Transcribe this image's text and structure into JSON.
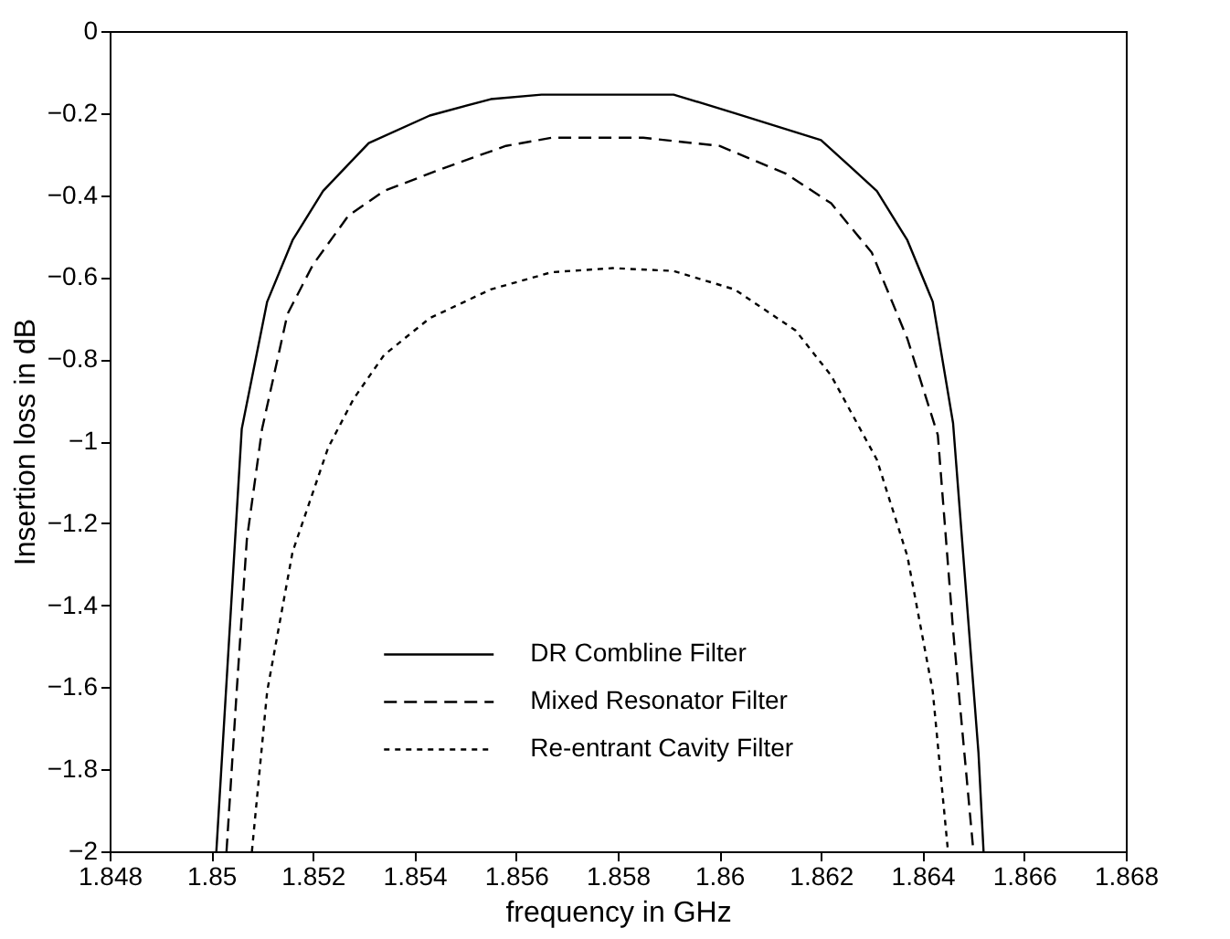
{
  "chart_data": {
    "type": "line",
    "xlabel": "frequency in GHz",
    "ylabel": "Insertion loss in dB",
    "xlim": [
      1.848,
      1.868
    ],
    "xticks": [
      1.848,
      1.85,
      1.852,
      1.854,
      1.856,
      1.858,
      1.86,
      1.862,
      1.864,
      1.866,
      1.868
    ],
    "ylim": [
      -2,
      0
    ],
    "yticks": [
      -2,
      -1.8,
      -1.6,
      -1.4,
      -1.2,
      -1,
      -0.8,
      -0.6,
      -0.4,
      -0.2,
      0
    ],
    "grid": false,
    "legend": "bottom",
    "marker": "none",
    "series": [
      {
        "name": "DR Combline Filter",
        "color": "#000000",
        "line_style": "solid",
        "x": [
          1.8501,
          1.8506,
          1.8511,
          1.8516,
          1.8522,
          1.8527,
          1.8531,
          1.8543,
          1.8555,
          1.8565,
          1.8591,
          1.8603,
          1.862,
          1.8626,
          1.8631,
          1.8637,
          1.8642,
          1.8646,
          1.8651,
          1.8652
        ],
        "values": [
          -2,
          -0.97,
          -0.66,
          -0.51,
          -0.39,
          -0.325,
          -0.273,
          -0.206,
          -0.166,
          -0.155,
          -0.155,
          -0.2,
          -0.266,
          -0.333,
          -0.39,
          -0.51,
          -0.66,
          -0.956,
          -1.76,
          -2
        ]
      },
      {
        "name": "Mixed Resonator Filter",
        "color": "#000000",
        "line_style": "dashed",
        "x": [
          1.8503,
          1.8505,
          1.8507,
          1.851,
          1.8515,
          1.852,
          1.8527,
          1.8534,
          1.8546,
          1.8558,
          1.8567,
          1.8585,
          1.86,
          1.8613,
          1.8622,
          1.863,
          1.8637,
          1.8643,
          1.8646,
          1.865
        ],
        "values": [
          -2,
          -1.61,
          -1.24,
          -0.97,
          -0.69,
          -0.57,
          -0.45,
          -0.39,
          -0.333,
          -0.28,
          -0.26,
          -0.26,
          -0.28,
          -0.347,
          -0.42,
          -0.54,
          -0.75,
          -0.985,
          -1.46,
          -2
        ]
      },
      {
        "name": "Re-entrant Cavity Filter",
        "color": "#000000",
        "line_style": "dotted",
        "x": [
          1.8508,
          1.8511,
          1.8516,
          1.8523,
          1.8528,
          1.8534,
          1.8543,
          1.8555,
          1.8567,
          1.8579,
          1.8591,
          1.8603,
          1.8615,
          1.8622,
          1.8631,
          1.8637,
          1.8642,
          1.8645
        ],
        "values": [
          -2,
          -1.61,
          -1.27,
          -1.016,
          -0.897,
          -0.79,
          -0.7,
          -0.63,
          -0.588,
          -0.578,
          -0.585,
          -0.63,
          -0.73,
          -0.84,
          -1.045,
          -1.28,
          -1.61,
          -2
        ]
      }
    ]
  }
}
